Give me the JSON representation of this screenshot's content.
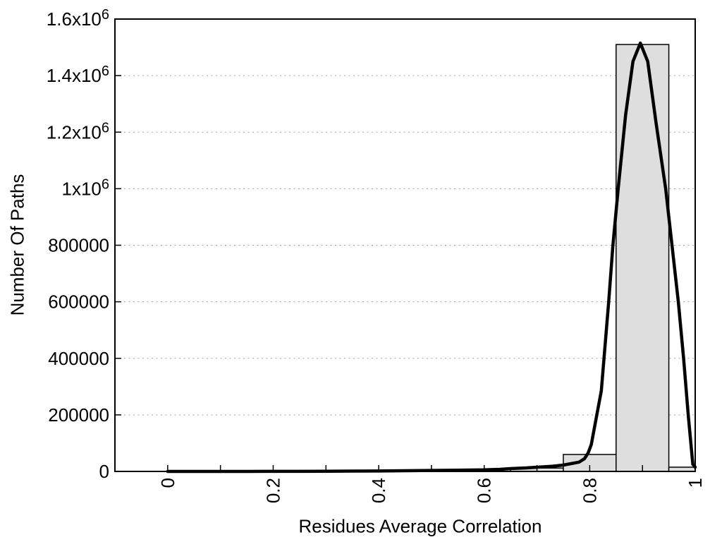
{
  "figure": {
    "background": "#ffffff"
  },
  "chart_data": {
    "type": "bar",
    "subtype": "histogram-with-fit-curve",
    "title": "",
    "xlabel": "Residues Average Correlation",
    "ylabel": "Number Of Paths",
    "xlim": [
      -0.1,
      1.0
    ],
    "ylim": [
      0,
      1600000
    ],
    "grid": {
      "axis": "y",
      "style": "dotted",
      "color": "#a0a0a0"
    },
    "legend": "none",
    "colors": {
      "bar_fill": "#dedede",
      "bar_stroke": "#000000",
      "curve": "#000000",
      "axis": "#000000",
      "text": "#000000"
    },
    "x_ticks": [
      {
        "value": 0,
        "label": "0"
      },
      {
        "value": 0.1,
        "label": null
      },
      {
        "value": 0.2,
        "label": "0.2"
      },
      {
        "value": 0.3,
        "label": null
      },
      {
        "value": 0.4,
        "label": "0.4"
      },
      {
        "value": 0.5,
        "label": null
      },
      {
        "value": 0.6,
        "label": "0.6"
      },
      {
        "value": 0.7,
        "label": null
      },
      {
        "value": 0.8,
        "label": "0.8"
      },
      {
        "value": 0.9,
        "label": null
      },
      {
        "value": 1.0,
        "label": "1"
      }
    ],
    "y_ticks": [
      {
        "value": 0,
        "label": "0"
      },
      {
        "value": 200000,
        "label": "200000"
      },
      {
        "value": 400000,
        "label": "400000"
      },
      {
        "value": 600000,
        "label": "600000"
      },
      {
        "value": 800000,
        "label": "800000"
      },
      {
        "value": 1000000,
        "label": "1x10^6"
      },
      {
        "value": 1200000,
        "label": "1.2x10^6"
      },
      {
        "value": 1400000,
        "label": "1.4x10^6"
      },
      {
        "value": 1600000,
        "label": "1.6x10^6"
      }
    ],
    "bars": [
      {
        "x0": 0.65,
        "x1": 0.75,
        "count": 12000
      },
      {
        "x0": 0.75,
        "x1": 0.85,
        "count": 60000
      },
      {
        "x0": 0.85,
        "x1": 0.95,
        "count": 1510000
      },
      {
        "x0": 0.95,
        "x1": 1.0,
        "count": 15000
      }
    ],
    "curve": {
      "name": "density-fit",
      "stroke_width": 4.5,
      "points": [
        [
          0.0,
          0
        ],
        [
          0.05,
          0
        ],
        [
          0.1,
          0
        ],
        [
          0.15,
          100
        ],
        [
          0.2,
          200
        ],
        [
          0.25,
          400
        ],
        [
          0.3,
          700
        ],
        [
          0.35,
          1100
        ],
        [
          0.4,
          1700
        ],
        [
          0.45,
          2400
        ],
        [
          0.5,
          3300
        ],
        [
          0.55,
          4300
        ],
        [
          0.6,
          5500
        ],
        [
          0.63,
          7500
        ],
        [
          0.65,
          10000
        ],
        [
          0.68,
          12500
        ],
        [
          0.7,
          15000
        ],
        [
          0.73,
          18500
        ],
        [
          0.75,
          22500
        ],
        [
          0.78,
          33000
        ],
        [
          0.79,
          45000
        ],
        [
          0.797,
          65000
        ],
        [
          0.803,
          95000
        ],
        [
          0.81,
          165000
        ],
        [
          0.822,
          285000
        ],
        [
          0.836,
          600000
        ],
        [
          0.844,
          800000
        ],
        [
          0.854,
          1000000
        ],
        [
          0.868,
          1260000
        ],
        [
          0.882,
          1450000
        ],
        [
          0.896,
          1515000
        ],
        [
          0.91,
          1450000
        ],
        [
          0.926,
          1230000
        ],
        [
          0.944,
          1000000
        ],
        [
          0.956,
          800000
        ],
        [
          0.968,
          600000
        ],
        [
          0.978,
          400000
        ],
        [
          0.987,
          195000
        ],
        [
          0.9955,
          25000
        ],
        [
          1.0,
          15000
        ]
      ]
    }
  }
}
